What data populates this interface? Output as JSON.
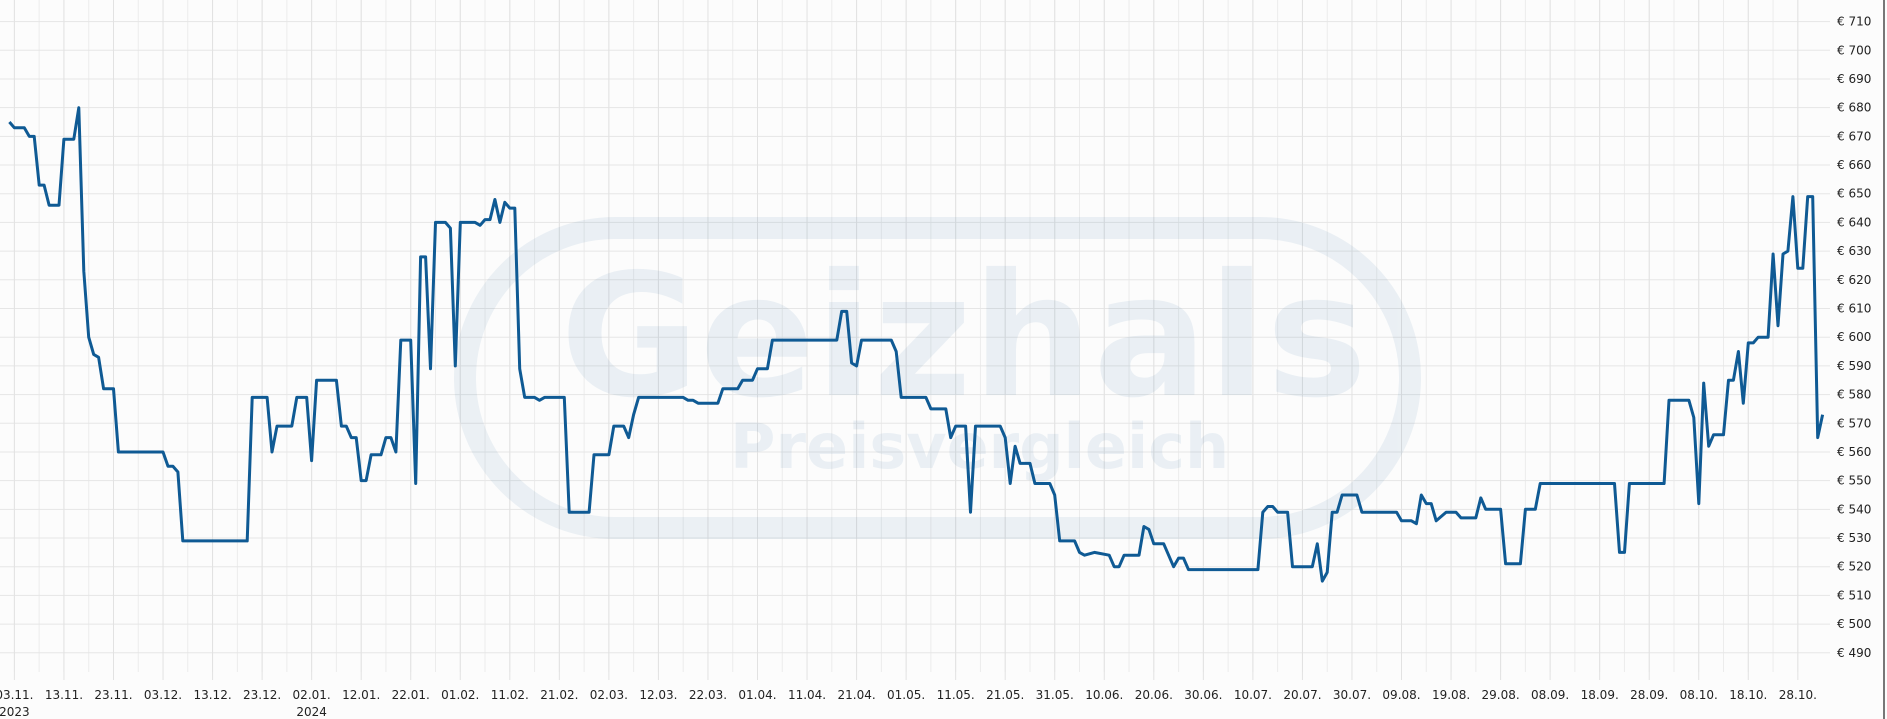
{
  "chart_data": {
    "type": "line",
    "title": "",
    "xlabel": "",
    "ylabel": "",
    "currency_prefix": "€",
    "grid": true,
    "line_color": "#0f5a94",
    "ylim": [
      480,
      715
    ],
    "xlim": [
      "2023-11-02",
      "2024-11-03"
    ],
    "y_ticks": [
      710,
      700,
      690,
      680,
      670,
      660,
      650,
      640,
      630,
      620,
      610,
      600,
      590,
      580,
      570,
      560,
      550,
      540,
      530,
      520,
      510,
      500,
      490
    ],
    "y_tick_labels": [
      "€ 710",
      "€ 700",
      "€ 690",
      "€ 680",
      "€ 670",
      "€ 660",
      "€ 650",
      "€ 640",
      "€ 630",
      "€ 620",
      "€ 610",
      "€ 600",
      "€ 590",
      "€ 580",
      "€ 570",
      "€ 560",
      "€ 550",
      "€ 540",
      "€ 530",
      "€ 520",
      "€ 510",
      "€ 500",
      "€ 490"
    ],
    "x_ticks": [
      {
        "date": "2023-11-03",
        "label": "03.11.",
        "year": "2023"
      },
      {
        "date": "2023-11-13",
        "label": "13.11."
      },
      {
        "date": "2023-11-23",
        "label": "23.11."
      },
      {
        "date": "2023-12-03",
        "label": "03.12."
      },
      {
        "date": "2023-12-13",
        "label": "13.12."
      },
      {
        "date": "2023-12-23",
        "label": "23.12."
      },
      {
        "date": "2024-01-02",
        "label": "02.01.",
        "year": "2024"
      },
      {
        "date": "2024-01-12",
        "label": "12.01."
      },
      {
        "date": "2024-01-22",
        "label": "22.01."
      },
      {
        "date": "2024-02-01",
        "label": "01.02."
      },
      {
        "date": "2024-02-11",
        "label": "11.02."
      },
      {
        "date": "2024-02-21",
        "label": "21.02."
      },
      {
        "date": "2024-03-02",
        "label": "02.03."
      },
      {
        "date": "2024-03-12",
        "label": "12.03."
      },
      {
        "date": "2024-03-22",
        "label": "22.03."
      },
      {
        "date": "2024-04-01",
        "label": "01.04."
      },
      {
        "date": "2024-04-11",
        "label": "11.04."
      },
      {
        "date": "2024-04-21",
        "label": "21.04."
      },
      {
        "date": "2024-05-01",
        "label": "01.05."
      },
      {
        "date": "2024-05-11",
        "label": "11.05."
      },
      {
        "date": "2024-05-21",
        "label": "21.05."
      },
      {
        "date": "2024-05-31",
        "label": "31.05."
      },
      {
        "date": "2024-06-10",
        "label": "10.06."
      },
      {
        "date": "2024-06-20",
        "label": "20.06."
      },
      {
        "date": "2024-06-30",
        "label": "30.06."
      },
      {
        "date": "2024-07-10",
        "label": "10.07."
      },
      {
        "date": "2024-07-20",
        "label": "20.07."
      },
      {
        "date": "2024-07-30",
        "label": "30.07."
      },
      {
        "date": "2024-08-09",
        "label": "09.08."
      },
      {
        "date": "2024-08-19",
        "label": "19.08."
      },
      {
        "date": "2024-08-29",
        "label": "29.08."
      },
      {
        "date": "2024-09-08",
        "label": "08.09."
      },
      {
        "date": "2024-09-18",
        "label": "18.09."
      },
      {
        "date": "2024-09-28",
        "label": "28.09."
      },
      {
        "date": "2024-10-08",
        "label": "08.10."
      },
      {
        "date": "2024-10-18",
        "label": "18.10."
      },
      {
        "date": "2024-10-28",
        "label": "28.10."
      }
    ],
    "series": [
      {
        "points": [
          [
            "2023-11-02",
            675
          ],
          [
            "2023-11-03",
            673
          ],
          [
            "2023-11-05",
            673
          ],
          [
            "2023-11-06",
            670
          ],
          [
            "2023-11-07",
            670
          ],
          [
            "2023-11-08",
            653
          ],
          [
            "2023-11-09",
            653
          ],
          [
            "2023-11-10",
            646
          ],
          [
            "2023-11-12",
            646
          ],
          [
            "2023-11-13",
            669
          ],
          [
            "2023-11-15",
            669
          ],
          [
            "2023-11-16",
            680
          ],
          [
            "2023-11-17",
            623
          ],
          [
            "2023-11-18",
            600
          ],
          [
            "2023-11-19",
            594
          ],
          [
            "2023-11-20",
            593
          ],
          [
            "2023-11-21",
            582
          ],
          [
            "2023-11-23",
            582
          ],
          [
            "2023-11-24",
            560
          ],
          [
            "2023-12-03",
            560
          ],
          [
            "2023-12-04",
            555
          ],
          [
            "2023-12-05",
            555
          ],
          [
            "2023-12-06",
            553
          ],
          [
            "2023-12-07",
            529
          ],
          [
            "2023-12-20",
            529
          ],
          [
            "2023-12-21",
            579
          ],
          [
            "2023-12-24",
            579
          ],
          [
            "2023-12-25",
            560
          ],
          [
            "2023-12-26",
            569
          ],
          [
            "2023-12-29",
            569
          ],
          [
            "2023-12-30",
            579
          ],
          [
            "2024-01-01",
            579
          ],
          [
            "2024-01-02",
            557
          ],
          [
            "2024-01-03",
            585
          ],
          [
            "2024-01-07",
            585
          ],
          [
            "2024-01-08",
            569
          ],
          [
            "2024-01-09",
            569
          ],
          [
            "2024-01-10",
            565
          ],
          [
            "2024-01-11",
            565
          ],
          [
            "2024-01-12",
            550
          ],
          [
            "2024-01-13",
            550
          ],
          [
            "2024-01-14",
            559
          ],
          [
            "2024-01-16",
            559
          ],
          [
            "2024-01-17",
            565
          ],
          [
            "2024-01-18",
            565
          ],
          [
            "2024-01-19",
            560
          ],
          [
            "2024-01-20",
            599
          ],
          [
            "2024-01-22",
            599
          ],
          [
            "2024-01-23",
            549
          ],
          [
            "2024-01-24",
            628
          ],
          [
            "2024-01-25",
            628
          ],
          [
            "2024-01-26",
            589
          ],
          [
            "2024-01-27",
            640
          ],
          [
            "2024-01-29",
            640
          ],
          [
            "2024-01-30",
            638
          ],
          [
            "2024-01-31",
            590
          ],
          [
            "2024-02-01",
            640
          ],
          [
            "2024-02-04",
            640
          ],
          [
            "2024-02-05",
            639
          ],
          [
            "2024-02-06",
            641
          ],
          [
            "2024-02-07",
            641
          ],
          [
            "2024-02-08",
            648
          ],
          [
            "2024-02-09",
            640
          ],
          [
            "2024-02-10",
            647
          ],
          [
            "2024-02-11",
            645
          ],
          [
            "2024-02-12",
            645
          ],
          [
            "2024-02-13",
            589
          ],
          [
            "2024-02-14",
            579
          ],
          [
            "2024-02-16",
            579
          ],
          [
            "2024-02-17",
            578
          ],
          [
            "2024-02-18",
            579
          ],
          [
            "2024-02-22",
            579
          ],
          [
            "2024-02-23",
            539
          ],
          [
            "2024-02-27",
            539
          ],
          [
            "2024-02-28",
            559
          ],
          [
            "2024-03-02",
            559
          ],
          [
            "2024-03-03",
            569
          ],
          [
            "2024-03-05",
            569
          ],
          [
            "2024-03-06",
            565
          ],
          [
            "2024-03-07",
            573
          ],
          [
            "2024-03-08",
            579
          ],
          [
            "2024-03-17",
            579
          ],
          [
            "2024-03-18",
            578
          ],
          [
            "2024-03-19",
            578
          ],
          [
            "2024-03-20",
            577
          ],
          [
            "2024-03-24",
            577
          ],
          [
            "2024-03-25",
            582
          ],
          [
            "2024-03-28",
            582
          ],
          [
            "2024-03-29",
            585
          ],
          [
            "2024-03-31",
            585
          ],
          [
            "2024-04-01",
            589
          ],
          [
            "2024-04-03",
            589
          ],
          [
            "2024-04-04",
            599
          ],
          [
            "2024-04-17",
            599
          ],
          [
            "2024-04-18",
            609
          ],
          [
            "2024-04-19",
            609
          ],
          [
            "2024-04-20",
            591
          ],
          [
            "2024-04-21",
            590
          ],
          [
            "2024-04-22",
            599
          ],
          [
            "2024-04-28",
            599
          ],
          [
            "2024-04-29",
            595
          ],
          [
            "2024-04-30",
            579
          ],
          [
            "2024-05-05",
            579
          ],
          [
            "2024-05-06",
            575
          ],
          [
            "2024-05-09",
            575
          ],
          [
            "2024-05-10",
            565
          ],
          [
            "2024-05-11",
            569
          ],
          [
            "2024-05-13",
            569
          ],
          [
            "2024-05-14",
            539
          ],
          [
            "2024-05-15",
            569
          ],
          [
            "2024-05-20",
            569
          ],
          [
            "2024-05-21",
            565
          ],
          [
            "2024-05-22",
            549
          ],
          [
            "2024-05-23",
            562
          ],
          [
            "2024-05-24",
            556
          ],
          [
            "2024-05-26",
            556
          ],
          [
            "2024-05-27",
            549
          ],
          [
            "2024-05-30",
            549
          ],
          [
            "2024-05-31",
            545
          ],
          [
            "2024-06-01",
            529
          ],
          [
            "2024-06-04",
            529
          ],
          [
            "2024-06-05",
            525
          ],
          [
            "2024-06-06",
            524
          ],
          [
            "2024-06-08",
            525
          ],
          [
            "2024-06-11",
            524
          ],
          [
            "2024-06-12",
            520
          ],
          [
            "2024-06-13",
            520
          ],
          [
            "2024-06-14",
            524
          ],
          [
            "2024-06-17",
            524
          ],
          [
            "2024-06-18",
            534
          ],
          [
            "2024-06-19",
            533
          ],
          [
            "2024-06-20",
            528
          ],
          [
            "2024-06-22",
            528
          ],
          [
            "2024-06-24",
            520
          ],
          [
            "2024-06-25",
            523
          ],
          [
            "2024-06-26",
            523
          ],
          [
            "2024-06-27",
            519
          ],
          [
            "2024-06-28",
            519
          ],
          [
            "2024-07-11",
            519
          ],
          [
            "2024-07-12",
            539
          ],
          [
            "2024-07-13",
            541
          ],
          [
            "2024-07-14",
            541
          ],
          [
            "2024-07-15",
            539
          ],
          [
            "2024-07-17",
            539
          ],
          [
            "2024-07-18",
            520
          ],
          [
            "2024-07-22",
            520
          ],
          [
            "2024-07-23",
            528
          ],
          [
            "2024-07-24",
            515
          ],
          [
            "2024-07-25",
            518
          ],
          [
            "2024-07-26",
            539
          ],
          [
            "2024-07-27",
            539
          ],
          [
            "2024-07-28",
            545
          ],
          [
            "2024-07-31",
            545
          ],
          [
            "2024-08-01",
            539
          ],
          [
            "2024-08-08",
            539
          ],
          [
            "2024-08-09",
            536
          ],
          [
            "2024-08-11",
            536
          ],
          [
            "2024-08-12",
            535
          ],
          [
            "2024-08-13",
            545
          ],
          [
            "2024-08-14",
            542
          ],
          [
            "2024-08-15",
            542
          ],
          [
            "2024-08-16",
            536
          ],
          [
            "2024-08-18",
            539
          ],
          [
            "2024-08-20",
            539
          ],
          [
            "2024-08-21",
            537
          ],
          [
            "2024-08-24",
            537
          ],
          [
            "2024-08-25",
            544
          ],
          [
            "2024-08-26",
            540
          ],
          [
            "2024-08-29",
            540
          ],
          [
            "2024-08-30",
            521
          ],
          [
            "2024-09-02",
            521
          ],
          [
            "2024-09-03",
            540
          ],
          [
            "2024-09-05",
            540
          ],
          [
            "2024-09-06",
            549
          ],
          [
            "2024-09-21",
            549
          ],
          [
            "2024-09-22",
            525
          ],
          [
            "2024-09-23",
            525
          ],
          [
            "2024-09-24",
            549
          ],
          [
            "2024-10-01",
            549
          ],
          [
            "2024-10-02",
            578
          ],
          [
            "2024-10-06",
            578
          ],
          [
            "2024-10-07",
            572
          ],
          [
            "2024-10-08",
            542
          ],
          [
            "2024-10-09",
            584
          ],
          [
            "2024-10-10",
            562
          ],
          [
            "2024-10-11",
            566
          ],
          [
            "2024-10-13",
            566
          ],
          [
            "2024-10-14",
            585
          ],
          [
            "2024-10-15",
            585
          ],
          [
            "2024-10-16",
            595
          ],
          [
            "2024-10-17",
            577
          ],
          [
            "2024-10-18",
            598
          ],
          [
            "2024-10-19",
            598
          ],
          [
            "2024-10-20",
            600
          ],
          [
            "2024-10-22",
            600
          ],
          [
            "2024-10-23",
            629
          ],
          [
            "2024-10-24",
            604
          ],
          [
            "2024-10-25",
            629
          ],
          [
            "2024-10-26",
            630
          ],
          [
            "2024-10-27",
            649
          ],
          [
            "2024-10-28",
            624
          ],
          [
            "2024-10-29",
            624
          ],
          [
            "2024-10-30",
            649
          ],
          [
            "2024-10-31",
            649
          ],
          [
            "2024-11-01",
            565
          ],
          [
            "2024-11-02",
            573
          ]
        ]
      }
    ],
    "watermark": {
      "line1": "Geizhals",
      "line2": "Preisvergleich"
    }
  }
}
